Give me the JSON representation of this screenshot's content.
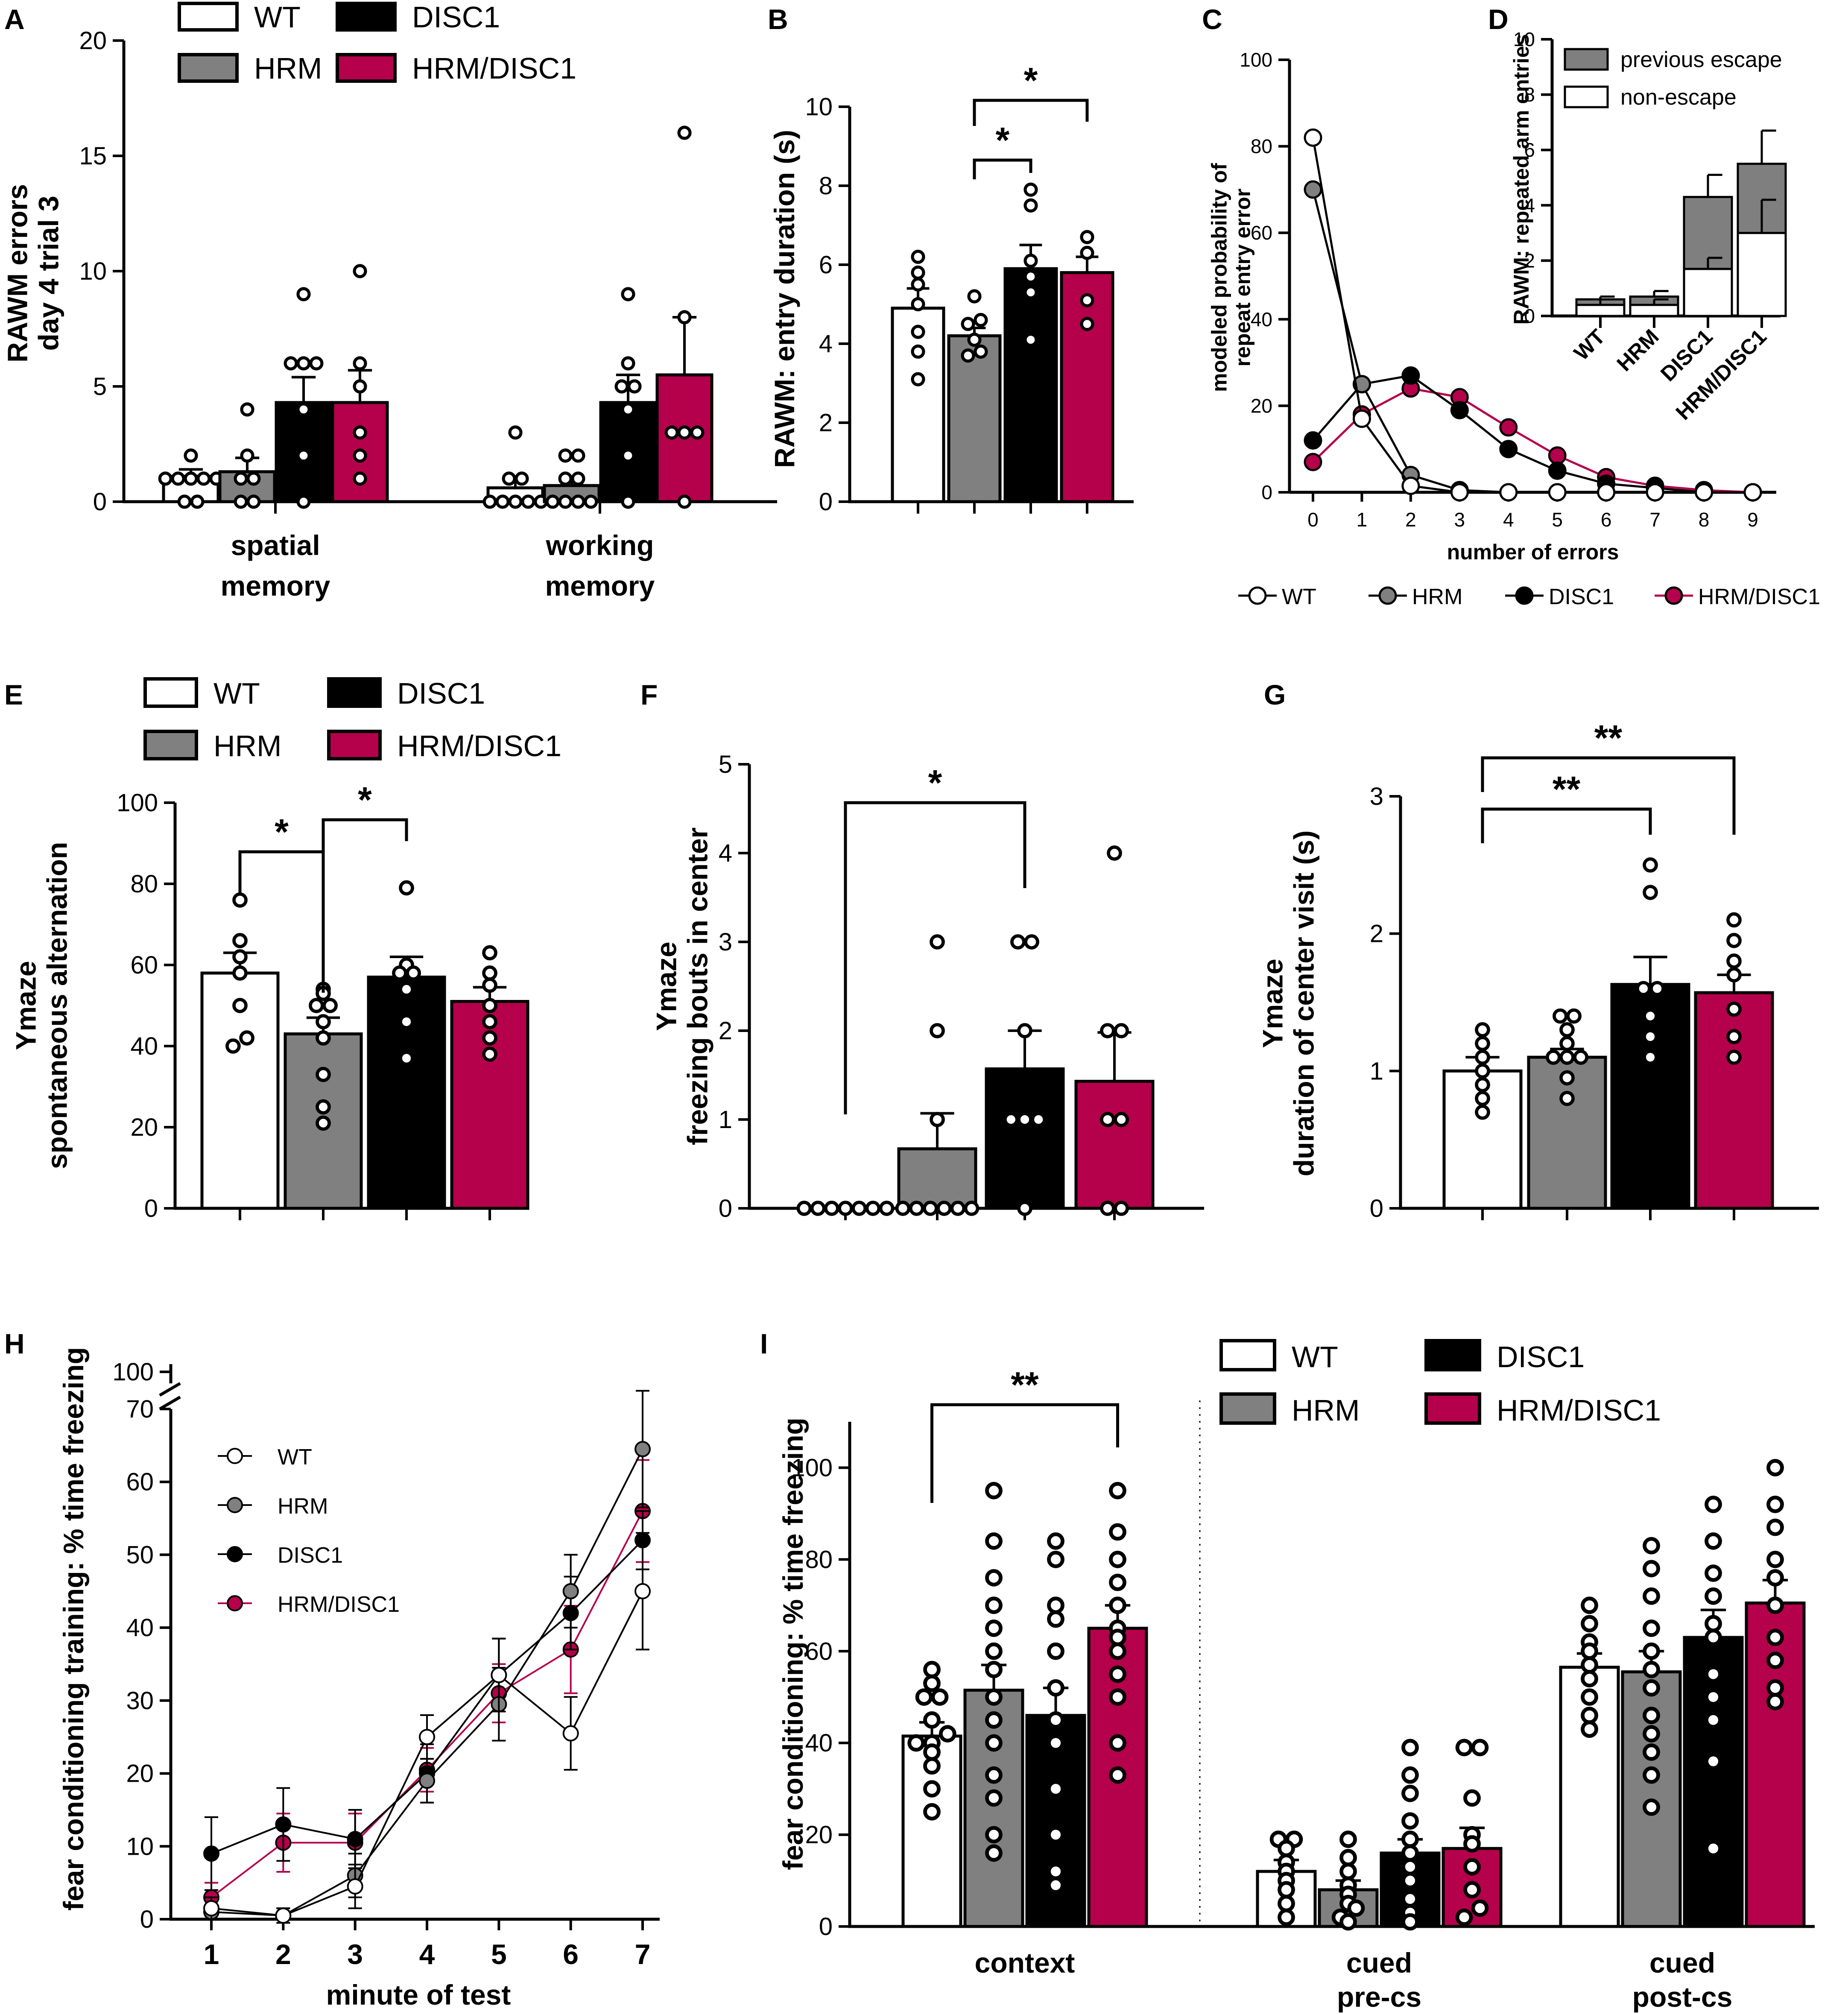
{
  "colors": {
    "WT": "#ffffff",
    "HRM": "#808080",
    "DISC1": "#000000",
    "HRM/DISC1": "#b5004b",
    "previous escape": "#7f7f7f",
    "non-escape": "#ffffff"
  },
  "chart_data": [
    {
      "panel": "A",
      "type": "bar",
      "ylabel": [
        "RAWM errors",
        "day 4 trial 3"
      ],
      "ylim": [
        0,
        20
      ],
      "yticks": [
        0,
        5,
        10,
        15,
        20
      ],
      "legend": [
        "WT",
        "DISC1",
        "HRM",
        "HRM/DISC1"
      ],
      "groups": [
        {
          "label": [
            "spatial",
            "memory"
          ],
          "bars": [
            {
              "genotype": "WT",
              "mean": 1.1,
              "sem": 0.3,
              "points": [
                0,
                0,
                1,
                1,
                1,
                1,
                1,
                2
              ]
            },
            {
              "genotype": "HRM",
              "mean": 1.3,
              "sem": 0.6,
              "points": [
                0,
                0,
                1,
                1,
                2,
                4
              ]
            },
            {
              "genotype": "DISC1",
              "mean": 4.3,
              "sem": 1.1,
              "points": [
                0,
                2,
                4,
                6,
                6,
                6,
                9
              ]
            },
            {
              "genotype": "HRM/DISC1",
              "mean": 4.3,
              "sem": 1.4,
              "points": [
                1,
                2,
                3,
                5,
                6,
                10
              ]
            }
          ]
        },
        {
          "label": [
            "working",
            "memory"
          ],
          "bars": [
            {
              "genotype": "WT",
              "mean": 0.6,
              "sem": 0.4,
              "points": [
                0,
                0,
                0,
                0,
                0,
                1,
                1,
                3
              ]
            },
            {
              "genotype": "HRM",
              "mean": 0.7,
              "sem": 0.3,
              "points": [
                0,
                0,
                0,
                0,
                1,
                1,
                2,
                2
              ]
            },
            {
              "genotype": "DISC1",
              "mean": 4.3,
              "sem": 1.2,
              "points": [
                0,
                2,
                4,
                5,
                5,
                6,
                9
              ]
            },
            {
              "genotype": "HRM/DISC1",
              "mean": 5.5,
              "sem": 2.5,
              "points": [
                0,
                3,
                3,
                3,
                8,
                16
              ]
            }
          ]
        }
      ]
    },
    {
      "panel": "B",
      "type": "bar",
      "ylabel": [
        "RAWM: entry duration (s)"
      ],
      "ylim": [
        0,
        10
      ],
      "yticks": [
        0,
        2,
        4,
        6,
        8,
        10
      ],
      "bars": [
        {
          "genotype": "WT",
          "mean": 4.9,
          "sem": 0.5,
          "points": [
            3.1,
            3.8,
            4.3,
            5.0,
            5.5,
            5.8,
            6.2
          ]
        },
        {
          "genotype": "HRM",
          "mean": 4.2,
          "sem": 0.2,
          "points": [
            3.7,
            3.8,
            4.1,
            4.5,
            4.6,
            5.2
          ]
        },
        {
          "genotype": "DISC1",
          "mean": 5.9,
          "sem": 0.6,
          "points": [
            4.1,
            5.3,
            5.7,
            6.1,
            7.5,
            7.9
          ]
        },
        {
          "genotype": "HRM/DISC1",
          "mean": 5.8,
          "sem": 0.4,
          "points": [
            4.5,
            5.1,
            6.3,
            6.7
          ]
        }
      ],
      "significance": [
        {
          "from": "HRM",
          "to": "DISC1",
          "label": "*"
        },
        {
          "from": "HRM",
          "to": "HRM/DISC1",
          "label": "*"
        }
      ]
    },
    {
      "panel": "C",
      "type": "line",
      "ylabel": [
        "modeled probability of",
        "repeat entry error"
      ],
      "xlabel": "number of errors",
      "x": [
        0,
        1,
        2,
        3,
        4,
        5,
        6,
        7,
        8,
        9
      ],
      "ylim": [
        0,
        100
      ],
      "yticks": [
        0,
        20,
        40,
        60,
        80,
        100
      ],
      "series": [
        {
          "name": "WT",
          "values": [
            82,
            17,
            1.5,
            0,
            0,
            0,
            0,
            0,
            0,
            0
          ]
        },
        {
          "name": "HRM",
          "values": [
            70,
            25,
            4,
            0.5,
            0,
            0,
            0,
            0,
            0,
            0
          ]
        },
        {
          "name": "DISC1",
          "values": [
            12,
            25,
            27,
            19,
            10,
            5,
            2,
            1,
            0,
            0
          ]
        },
        {
          "name": "HRM/DISC1",
          "values": [
            7,
            18,
            24,
            22,
            15,
            8.5,
            3.5,
            1.5,
            0.5,
            0
          ]
        }
      ]
    },
    {
      "panel": "D",
      "type": "bar",
      "stacked": true,
      "ylabel": [
        "RAWM: repeated arm entries"
      ],
      "ylim": [
        0,
        10
      ],
      "yticks": [
        0,
        2,
        4,
        6,
        8,
        10
      ],
      "legend": [
        "previous escape",
        "non-escape"
      ],
      "categories": [
        "WT",
        "HRM",
        "DISC1",
        "HRM/DISC1"
      ],
      "series": [
        {
          "name": "non-escape",
          "values": [
            0.4,
            0.4,
            1.7,
            3.0
          ],
          "sem": [
            0.2,
            0.2,
            0.4,
            1.2
          ]
        },
        {
          "name": "previous escape",
          "values": [
            0.2,
            0.3,
            2.6,
            2.5
          ],
          "sem": [
            0.1,
            0.2,
            0.8,
            1.2
          ]
        }
      ]
    },
    {
      "panel": "E",
      "type": "bar",
      "ylabel": [
        "Ymaze",
        "spontaneous alternation"
      ],
      "ylim": [
        0,
        100
      ],
      "yticks": [
        0,
        20,
        40,
        60,
        80,
        100
      ],
      "legend": [
        "WT",
        "DISC1",
        "HRM",
        "HRM/DISC1"
      ],
      "bars": [
        {
          "genotype": "WT",
          "mean": 58,
          "sem": 5,
          "points": [
            40,
            42,
            50,
            58,
            62,
            66,
            76
          ]
        },
        {
          "genotype": "HRM",
          "mean": 43,
          "sem": 4,
          "points": [
            21,
            25,
            33,
            42,
            46,
            50,
            50,
            53,
            54
          ]
        },
        {
          "genotype": "DISC1",
          "mean": 57,
          "sem": 5,
          "points": [
            37,
            46,
            54,
            58,
            58,
            60,
            79
          ]
        },
        {
          "genotype": "HRM/DISC1",
          "mean": 51,
          "sem": 3.5,
          "points": [
            38,
            42,
            46,
            50,
            55,
            58,
            63
          ]
        }
      ],
      "significance": [
        {
          "from": "WT",
          "to": "HRM",
          "label": "*"
        },
        {
          "from": "HRM",
          "to": "DISC1",
          "label": "*"
        }
      ]
    },
    {
      "panel": "F",
      "type": "bar",
      "ylabel": [
        "Ymaze",
        "freezing bouts in center"
      ],
      "ylim": [
        0,
        5
      ],
      "yticks": [
        0,
        1,
        2,
        3,
        4,
        5
      ],
      "bars": [
        {
          "genotype": "WT",
          "mean": 0,
          "sem": 0,
          "points": [
            0,
            0,
            0,
            0,
            0,
            0,
            0
          ]
        },
        {
          "genotype": "HRM",
          "mean": 0.67,
          "sem": 0.4,
          "points": [
            0,
            0,
            0,
            0,
            0,
            0,
            1,
            2,
            3
          ]
        },
        {
          "genotype": "DISC1",
          "mean": 1.57,
          "sem": 0.43,
          "points": [
            0,
            1,
            1,
            1,
            2,
            3,
            3
          ]
        },
        {
          "genotype": "HRM/DISC1",
          "mean": 1.43,
          "sem": 0.55,
          "points": [
            0,
            0,
            1,
            1,
            2,
            2,
            4
          ]
        }
      ],
      "significance": [
        {
          "from": "WT",
          "to": "DISC1",
          "label": "*"
        }
      ]
    },
    {
      "panel": "G",
      "type": "bar",
      "ylabel": [
        "Ymaze",
        "duration of center visit (s)"
      ],
      "ylim": [
        0,
        3
      ],
      "yticks": [
        0,
        1,
        2,
        3
      ],
      "bars": [
        {
          "genotype": "WT",
          "mean": 1.0,
          "sem": 0.1,
          "points": [
            0.7,
            0.8,
            0.9,
            1.0,
            1.1,
            1.2,
            1.3
          ]
        },
        {
          "genotype": "HRM",
          "mean": 1.1,
          "sem": 0.06,
          "points": [
            0.8,
            0.95,
            1.1,
            1.1,
            1.1,
            1.2,
            1.3,
            1.4,
            1.4
          ]
        },
        {
          "genotype": "DISC1",
          "mean": 1.63,
          "sem": 0.2,
          "points": [
            1.1,
            1.25,
            1.4,
            1.6,
            1.6,
            2.3,
            2.5
          ]
        },
        {
          "genotype": "HRM/DISC1",
          "mean": 1.57,
          "sem": 0.13,
          "points": [
            1.1,
            1.25,
            1.45,
            1.7,
            1.8,
            1.95,
            2.1
          ]
        }
      ],
      "significance": [
        {
          "from": "WT",
          "to": "DISC1",
          "label": "**"
        },
        {
          "from": "WT",
          "to": "HRM/DISC1",
          "label": "**"
        }
      ]
    },
    {
      "panel": "H",
      "type": "line",
      "ylabel": [
        "fear conditioning training: % time freezing"
      ],
      "xlabel": "minute of test",
      "x": [
        1,
        2,
        3,
        4,
        5,
        6,
        7
      ],
      "ylim": [
        0,
        70
      ],
      "yticks": [
        0,
        10,
        20,
        30,
        40,
        50,
        60,
        70
      ],
      "axis_break_label": "100",
      "series": [
        {
          "name": "WT",
          "values": [
            1.5,
            0.5,
            4.5,
            25,
            33.5,
            25.5,
            45
          ],
          "sem": [
            1.5,
            1,
            3,
            3,
            5,
            5,
            8
          ]
        },
        {
          "name": "HRM",
          "values": [
            1,
            0.5,
            6,
            19,
            29.5,
            45,
            64.5
          ],
          "sem": [
            1,
            1,
            3,
            3,
            5,
            5,
            8
          ]
        },
        {
          "name": "DISC1",
          "values": [
            9,
            13,
            11,
            20,
            33.5,
            42,
            52
          ],
          "sem": [
            5,
            5,
            4,
            4,
            5,
            5,
            4
          ]
        },
        {
          "name": "HRM/DISC1",
          "values": [
            3,
            10.5,
            10.5,
            20.5,
            31,
            37,
            56
          ],
          "sem": [
            2,
            4,
            4,
            3,
            4,
            6,
            7
          ]
        }
      ]
    },
    {
      "panel": "I",
      "type": "bar",
      "ylabel": [
        "fear conditioning: % time freezing"
      ],
      "ylim": [
        0,
        110
      ],
      "yticks": [
        0,
        20,
        40,
        60,
        80,
        100
      ],
      "legend": [
        "WT",
        "DISC1",
        "HRM",
        "HRM/DISC1"
      ],
      "groups": [
        {
          "label": [
            "context"
          ],
          "bars": [
            {
              "genotype": "WT",
              "mean": 41.5,
              "sem": 3,
              "points": [
                25,
                30,
                35,
                38,
                40,
                40,
                42,
                45,
                50,
                50,
                53,
                56
              ]
            },
            {
              "genotype": "HRM",
              "mean": 51.5,
              "sem": 5.5,
              "points": [
                16,
                20,
                28,
                33,
                40,
                45,
                50,
                56,
                60,
                65,
                70,
                76,
                84,
                95
              ]
            },
            {
              "genotype": "DISC1",
              "mean": 46,
              "sem": 6,
              "points": [
                9,
                12,
                20,
                30,
                40,
                45,
                52,
                60,
                67,
                70,
                80,
                84
              ]
            },
            {
              "genotype": "HRM/DISC1",
              "mean": 65,
              "sem": 5,
              "points": [
                33,
                40,
                50,
                55,
                60,
                63,
                65,
                70,
                75,
                80,
                86,
                95
              ]
            }
          ]
        },
        {
          "label": [
            "cued",
            "pre-cs"
          ],
          "bars": [
            {
              "genotype": "WT",
              "mean": 12,
              "sem": 2.5,
              "points": [
                2,
                5,
                8,
                10,
                12,
                14,
                17,
                19,
                19
              ]
            },
            {
              "genotype": "HRM",
              "mean": 8,
              "sem": 2,
              "points": [
                1,
                2,
                4,
                5,
                7,
                9,
                12,
                15,
                19
              ]
            },
            {
              "genotype": "DISC1",
              "mean": 16,
              "sem": 3,
              "points": [
                1,
                3,
                6,
                10,
                13,
                16,
                19,
                23,
                29,
                33,
                39
              ]
            },
            {
              "genotype": "HRM/DISC1",
              "mean": 17,
              "sem": 4.5,
              "points": [
                2,
                4,
                8,
                13,
                18,
                20,
                28,
                39,
                39
              ]
            }
          ]
        },
        {
          "label": [
            "cued",
            "post-cs"
          ],
          "bars": [
            {
              "genotype": "WT",
              "mean": 56.5,
              "sem": 3,
              "points": [
                43,
                46,
                50,
                54,
                57,
                60,
                62,
                66,
                70
              ]
            },
            {
              "genotype": "HRM",
              "mean": 55.5,
              "sem": 4.5,
              "points": [
                26,
                33,
                38,
                42,
                46,
                52,
                56,
                60,
                65,
                72,
                78,
                83
              ]
            },
            {
              "genotype": "DISC1",
              "mean": 63,
              "sem": 6,
              "points": [
                17,
                36,
                45,
                50,
                55,
                63,
                66,
                72,
                77,
                84,
                92
              ]
            },
            {
              "genotype": "HRM/DISC1",
              "mean": 70.5,
              "sem": 5,
              "points": [
                49,
                52,
                58,
                63,
                70,
                76,
                80,
                87,
                92,
                100
              ]
            }
          ]
        }
      ],
      "significance": [
        {
          "group": 0,
          "from": "WT",
          "to": "HRM/DISC1",
          "label": "**"
        }
      ]
    }
  ]
}
